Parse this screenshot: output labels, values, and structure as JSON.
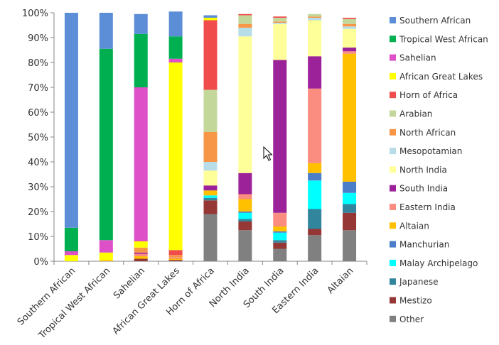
{
  "chart_data": {
    "type": "stacked-bar-100",
    "title": "",
    "xlabel": "",
    "ylabel": "",
    "ylim": [
      0,
      100
    ],
    "y_ticks": [
      "0%",
      "10%",
      "20%",
      "30%",
      "40%",
      "50%",
      "60%",
      "70%",
      "80%",
      "90%",
      "100%"
    ],
    "categories": [
      "Southern African",
      "Tropical West African",
      "Sahelian",
      "African Great Lakes",
      "Horn of Africa",
      "North India",
      "South India",
      "Eastern India",
      "Altaian"
    ],
    "legend_position": "right",
    "series": [
      {
        "name": "Other",
        "color": "#808080",
        "values": [
          0,
          0,
          0,
          0,
          19,
          12.5,
          5,
          10.5,
          12.5
        ]
      },
      {
        "name": "Mestizo",
        "color": "#953735",
        "values": [
          0,
          0,
          1,
          0.5,
          5.5,
          3.5,
          2.5,
          2.5,
          7
        ]
      },
      {
        "name": "Japanese",
        "color": "#31859C",
        "values": [
          0,
          0,
          0,
          0,
          1,
          1,
          1,
          8,
          3.5
        ]
      },
      {
        "name": "Malay Archipelago",
        "color": "#00FFFF",
        "values": [
          0,
          0,
          0,
          0,
          1,
          2.5,
          3,
          11.5,
          4.5
        ]
      },
      {
        "name": "Manchurian",
        "color": "#4A7EC8",
        "values": [
          0,
          0,
          0,
          0,
          0,
          0.5,
          0.5,
          3,
          4.5
        ]
      },
      {
        "name": "Altaian",
        "color": "#FFC000",
        "values": [
          0,
          0.5,
          1,
          0.5,
          2,
          5,
          2,
          4,
          51.5
        ]
      },
      {
        "name": "Eastern India",
        "color": "#FA8C80",
        "values": [
          0,
          0,
          1,
          0.5,
          0,
          2,
          5.5,
          30,
          1
        ]
      },
      {
        "name": "South India",
        "color": "#9C2299",
        "values": [
          0,
          0,
          0.5,
          0,
          2,
          8.5,
          61.5,
          13,
          1.5
        ]
      },
      {
        "name": "North India",
        "color": "#FFFF99",
        "values": [
          0,
          0,
          0,
          0,
          6,
          55,
          14.5,
          14.5,
          7.5
        ]
      },
      {
        "name": "Mesopotamian",
        "color": "#B7DEE8",
        "values": [
          0,
          0,
          0,
          0,
          3.5,
          3.5,
          0.5,
          1,
          1
        ]
      },
      {
        "name": "North African",
        "color": "#F79646",
        "values": [
          0,
          0,
          2,
          1,
          12,
          1.5,
          0.5,
          0.5,
          1
        ]
      },
      {
        "name": "Arabian",
        "color": "#C4D79B",
        "values": [
          0,
          0,
          0,
          0,
          17,
          3.5,
          1.5,
          1,
          2
        ]
      },
      {
        "name": "Horn of Africa",
        "color": "#F04C4C",
        "values": [
          0,
          0,
          0,
          2,
          28,
          0.5,
          0.5,
          0,
          0.5
        ]
      },
      {
        "name": "African Great Lakes",
        "color": "#FFFF00",
        "values": [
          2.5,
          3,
          2.5,
          75.5,
          1,
          0,
          0,
          0,
          0
        ]
      },
      {
        "name": "Sahelian",
        "color": "#DD50C8",
        "values": [
          1.5,
          5,
          62,
          1.5,
          0,
          0,
          0,
          0,
          0
        ]
      },
      {
        "name": "Tropical West African",
        "color": "#00B050",
        "values": [
          9.5,
          77,
          21.5,
          9,
          0,
          0,
          0,
          0,
          0
        ]
      },
      {
        "name": "Southern African",
        "color": "#5B8ED6",
        "values": [
          86.5,
          14.5,
          8,
          10,
          1,
          0,
          0,
          0,
          0
        ]
      }
    ]
  },
  "legend_order": [
    "Southern African",
    "Tropical West African",
    "Sahelian",
    "African Great Lakes",
    "Horn of Africa",
    "Arabian",
    "North African",
    "Mesopotamian",
    "North India",
    "South India",
    "Eastern India",
    "Altaian",
    "Manchurian",
    "Malay Archipelago",
    "Japanese",
    "Mestizo",
    "Other"
  ],
  "icons": {
    "cursor": "mouse-pointer-icon"
  }
}
